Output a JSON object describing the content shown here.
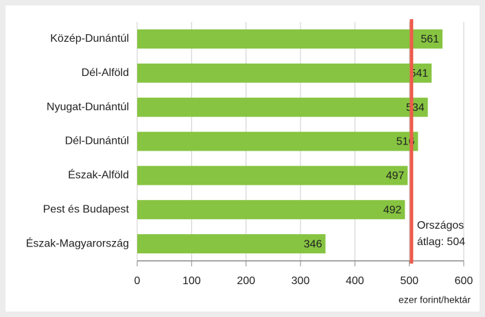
{
  "chart_data": {
    "type": "bar",
    "orientation": "horizontal",
    "categories": [
      "Közép-Dunántúl",
      "Dél-Alföld",
      "Nyugat-Dunántúl",
      "Dél-Dunántúl",
      "Észak-Alföld",
      "Pest és Budapest",
      "Észak-Magyarország"
    ],
    "values": [
      561,
      541,
      534,
      516,
      497,
      492,
      346
    ],
    "color": "#86c441",
    "xlim": [
      0,
      600
    ],
    "xticks": [
      0,
      100,
      200,
      300,
      400,
      500,
      600
    ],
    "grid": true,
    "xlabel": "ezer forint/hektár",
    "reference_line": {
      "value": 504,
      "color": "#ee5b4b",
      "label": [
        "Országos",
        "átlag: 504"
      ]
    }
  }
}
